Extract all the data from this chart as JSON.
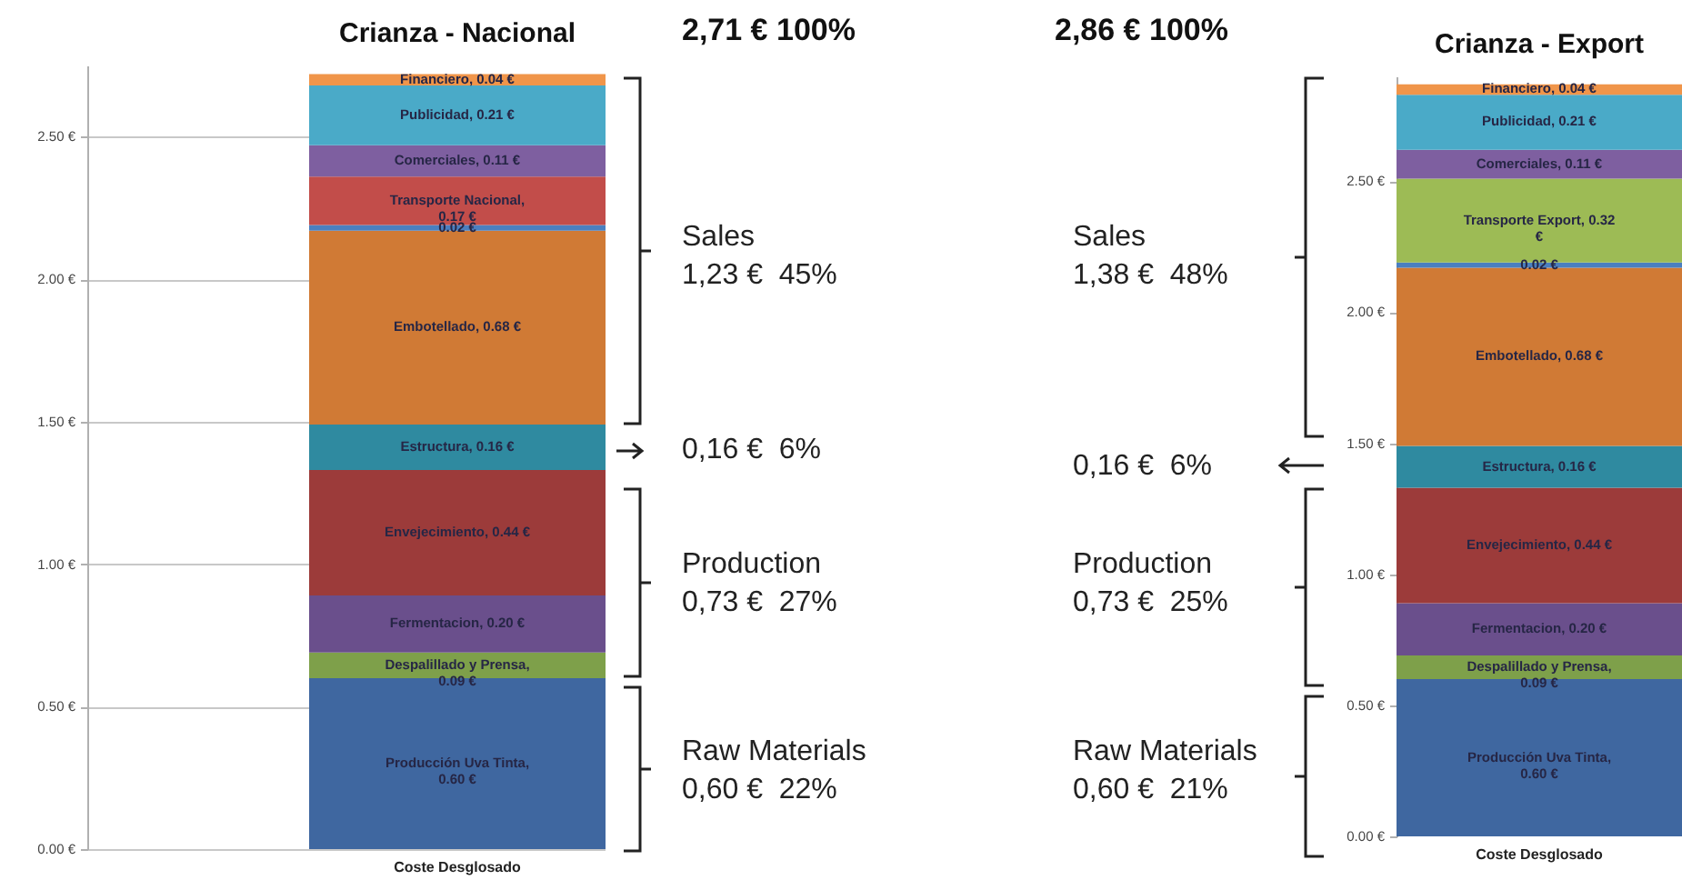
{
  "chart_data": [
    {
      "type": "bar",
      "title": "Crianza - Nacional",
      "categories": [
        "Coste Desglosado"
      ],
      "stacked": true,
      "grid": "y",
      "ylim": [
        0,
        2.75
      ],
      "yticks": [
        {
          "value": 0,
          "label": "0.00 €"
        },
        {
          "value": 0.5,
          "label": "0.50 €"
        },
        {
          "value": 1,
          "label": "1.00 €"
        },
        {
          "value": 1.5,
          "label": "1.50 €"
        },
        {
          "value": 2,
          "label": "2.00 €"
        },
        {
          "value": 2.5,
          "label": "2.50 €"
        }
      ],
      "series": [
        {
          "color": "#3f67a0",
          "values": [
            0.6
          ],
          "value_labels": [
            "Producción Uva Tinta, 0.60 €"
          ]
        },
        {
          "color": "#7ea04a",
          "values": [
            0.09
          ],
          "value_labels": [
            "Despalillado y Prensa, 0.09 €"
          ]
        },
        {
          "color": "#6a4f8c",
          "values": [
            0.2
          ],
          "value_labels": [
            "Fermentacion, 0.20 €"
          ]
        },
        {
          "color": "#9c3b3a",
          "values": [
            0.44
          ],
          "value_labels": [
            "Envejecimiento, 0.44 €"
          ]
        },
        {
          "color": "#2f8aa0",
          "values": [
            0.16
          ],
          "value_labels": [
            "Estructura, 0.16 €"
          ]
        },
        {
          "color": "#d07a35",
          "values": [
            0.68
          ],
          "value_labels": [
            "Embotellado, 0.68 €"
          ]
        },
        {
          "color": "#4a7fc0",
          "values": [
            0.02
          ],
          "value_labels": [
            "0.02 €"
          ]
        },
        {
          "color": "#c24d4a",
          "values": [
            0.17
          ],
          "value_labels": [
            "Transporte Nacional, 0.17 €"
          ]
        },
        {
          "color": "#7e5fa0",
          "values": [
            0.11
          ],
          "value_labels": [
            "Comerciales, 0.11 €"
          ]
        },
        {
          "color": "#4aaac8",
          "values": [
            0.21
          ],
          "value_labels": [
            "Publicidad, 0.21 €"
          ]
        },
        {
          "color": "#f0954a",
          "values": [
            0.04
          ],
          "value_labels": [
            "Financiero, 0.04 €"
          ]
        }
      ],
      "annotations": [
        "2,71 € 100%",
        "Sales",
        "1,23 €  45%",
        "0,16 €  6%",
        "Production",
        "0,73 €  27%",
        "Raw Materials",
        "0,60 €  22%"
      ]
    },
    {
      "type": "bar",
      "title": "Crianza - Export",
      "categories": [
        "Coste Desglosado"
      ],
      "stacked": true,
      "ylim": [
        0,
        2.9
      ],
      "yticks": [
        {
          "value": 0,
          "label": "0.00 €"
        },
        {
          "value": 0.5,
          "label": "0.50 €"
        },
        {
          "value": 1,
          "label": "1.00 €"
        },
        {
          "value": 1.5,
          "label": "1.50 €"
        },
        {
          "value": 2,
          "label": "2.00 €"
        },
        {
          "value": 2.5,
          "label": "2.50 €"
        }
      ],
      "series": [
        {
          "color": "#3f67a0",
          "values": [
            0.6
          ],
          "value_labels": [
            "Producción Uva Tinta, 0.60 €"
          ]
        },
        {
          "color": "#7ea04a",
          "values": [
            0.09
          ],
          "value_labels": [
            "Despalillado y Prensa, 0.09 €"
          ]
        },
        {
          "color": "#6a4f8c",
          "values": [
            0.2
          ],
          "value_labels": [
            "Fermentacion, 0.20 €"
          ]
        },
        {
          "color": "#9c3b3a",
          "values": [
            0.44
          ],
          "value_labels": [
            "Envejecimiento, 0.44 €"
          ]
        },
        {
          "color": "#2f8aa0",
          "values": [
            0.16
          ],
          "value_labels": [
            "Estructura, 0.16 €"
          ]
        },
        {
          "color": "#d07a35",
          "values": [
            0.68
          ],
          "value_labels": [
            "Embotellado, 0.68 €"
          ]
        },
        {
          "color": "#4a7fc0",
          "values": [
            0.02
          ],
          "value_labels": [
            "0.02 €"
          ]
        },
        {
          "color": "#9dbb55",
          "values": [
            0.32
          ],
          "value_labels": [
            "Transporte Export, 0.32 €"
          ]
        },
        {
          "color": "#7e5fa0",
          "values": [
            0.11
          ],
          "value_labels": [
            "Comerciales, 0.11 €"
          ]
        },
        {
          "color": "#4aaac8",
          "values": [
            0.21
          ],
          "value_labels": [
            "Publicidad, 0.21 €"
          ]
        },
        {
          "color": "#f0954a",
          "values": [
            0.04
          ],
          "value_labels": [
            "Financiero, 0.04 €"
          ]
        }
      ],
      "annotations": [
        "2,86 € 100%",
        "Sales",
        "1,38 €  48%",
        "0,16 €  6%",
        "Production",
        "0,73 €  25%",
        "Raw Materials",
        "0,60 €  21%"
      ]
    }
  ]
}
